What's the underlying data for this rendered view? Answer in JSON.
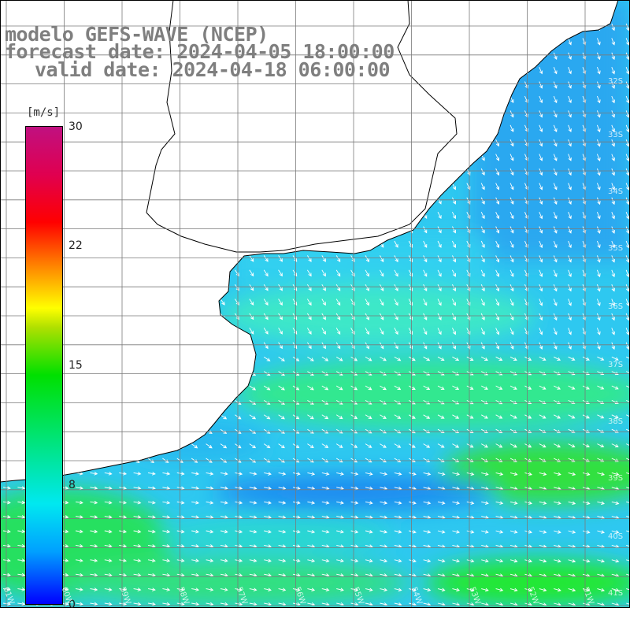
{
  "title": {
    "line1": "modelo GEFS-WAVE (NCEP)",
    "line2": "forecast date: 2024-04-05 18:00:00",
    "line3": "valid date: 2024-04-18 06:00:00"
  },
  "legend": {
    "unit": "[m/s]",
    "ticks": [
      "30",
      "22",
      "15",
      "8",
      "0"
    ],
    "colors": [
      "#0000ff",
      "#00a0ff",
      "#00e8f0",
      "#00e000",
      "#ffff00",
      "#ff9000",
      "#ff0000",
      "#c01080"
    ]
  },
  "map": {
    "lon_labels": [
      "61W",
      "60W",
      "59W",
      "58W",
      "57W",
      "56W",
      "55W",
      "54W",
      "53W",
      "52W",
      "51W"
    ],
    "lat_labels": [
      "32S",
      "33S",
      "34S",
      "35S",
      "36S",
      "37S",
      "38S",
      "39S",
      "40S",
      "41S"
    ],
    "arrow_color": "#ffffff",
    "land_color": "#ffffff",
    "grid_color": "#808080"
  }
}
